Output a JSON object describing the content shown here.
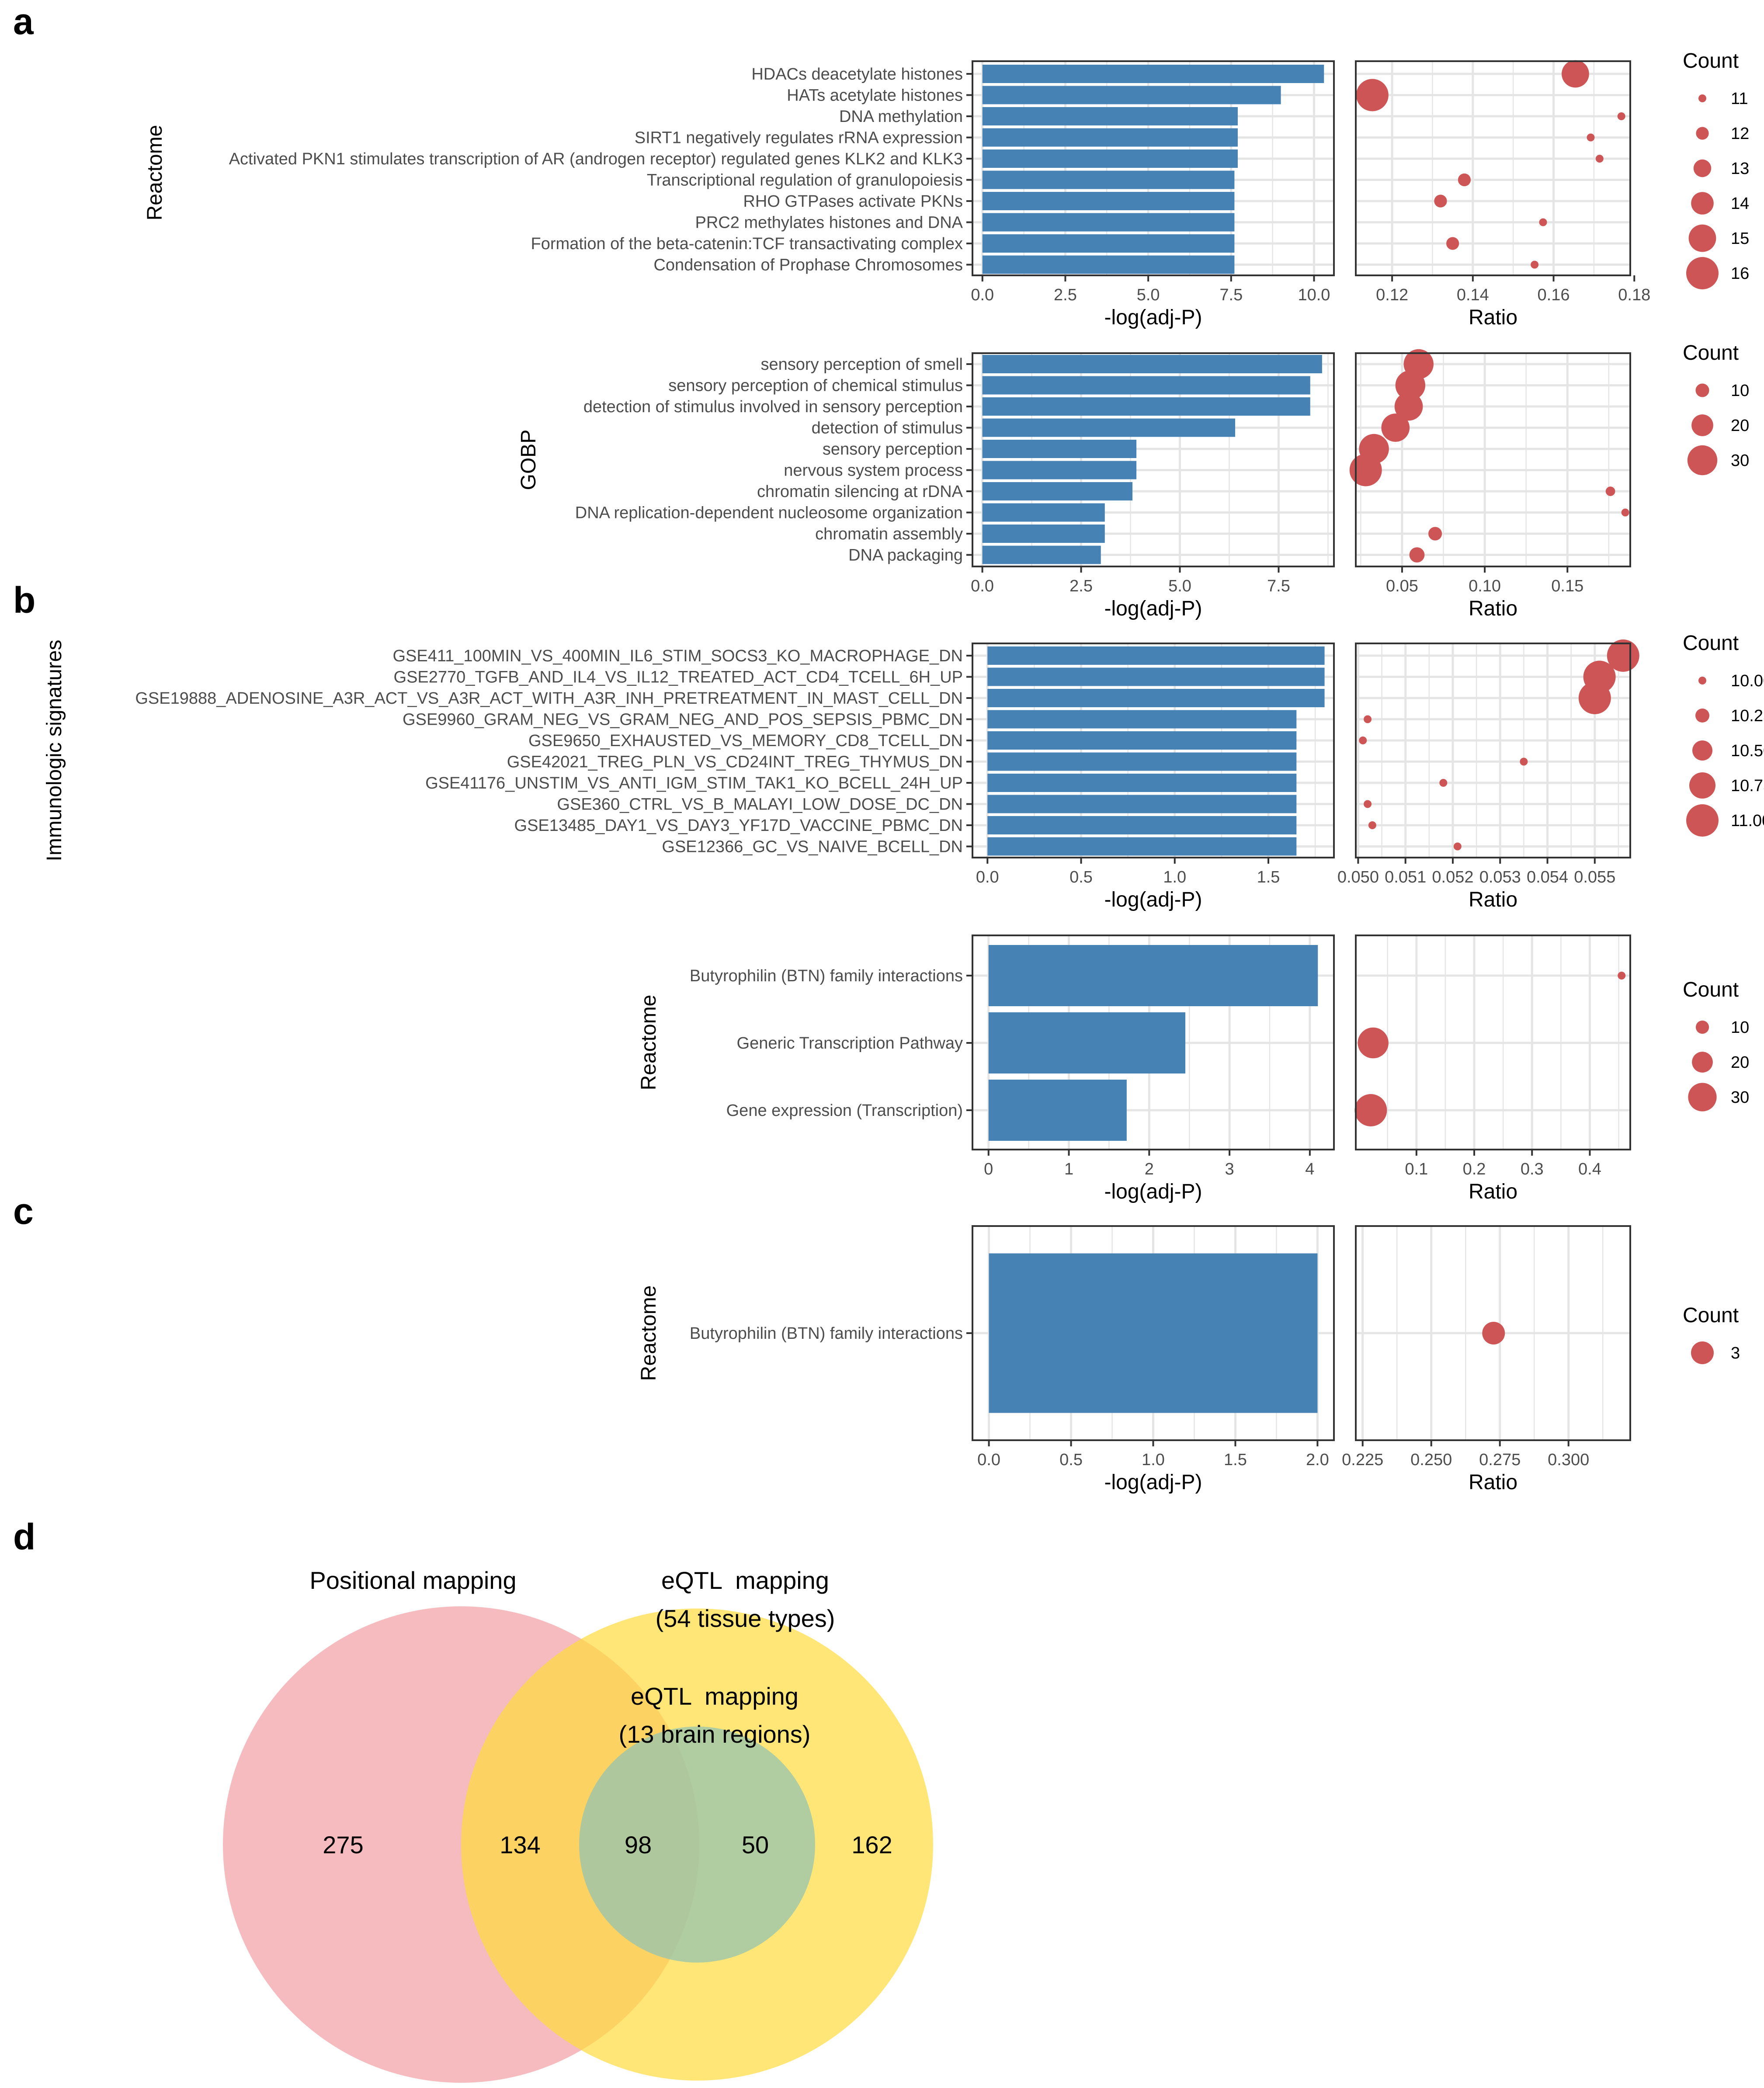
{
  "panel_letters": {
    "a": "a",
    "b": "b",
    "c": "c",
    "d": "d"
  },
  "colors": {
    "bar": "#4682b4",
    "dot": "#cd5555",
    "grid": "#e5e5e5",
    "frame": "#333333",
    "venn_positional": "#f29ea3",
    "venn_eqtl54": "#ffdc3c",
    "venn_brain": "#96c3b0"
  },
  "chart_data": [
    {
      "id": "a-reactome",
      "type": "bar",
      "group_label": "Reactome",
      "categories": [
        "HDACs deacetylate histones",
        "HATs acetylate histones",
        "DNA methylation",
        "SIRT1 negatively regulates rRNA expression",
        "Activated PKN1 stimulates transcription of AR (androgen receptor) regulated genes KLK2 and KLK3",
        "Transcriptional regulation of granulopoiesis",
        "RHO GTPases activate PKNs",
        "PRC2 methylates histones and DNA",
        "Formation of the beta-catenin:TCF transactivating complex",
        "Condensation of Prophase Chromosomes"
      ],
      "values": [
        10.3,
        9.0,
        7.7,
        7.7,
        7.7,
        7.6,
        7.6,
        7.6,
        7.6,
        7.6
      ],
      "xlabel": "-log(adj-P)",
      "xlim": [
        -0.3,
        10.6
      ],
      "xticks": [
        0,
        2.5,
        5,
        7.5,
        10
      ],
      "xtick_labels": [
        "0.0",
        "2.5",
        "5.0",
        "7.5",
        "10.0"
      ],
      "dot": {
        "type": "scatter",
        "xlabel": "Ratio",
        "xlim": [
          0.111,
          0.179
        ],
        "xticks": [
          0.12,
          0.14,
          0.16,
          0.18
        ],
        "xtick_labels": [
          "0.12",
          "0.14",
          "0.16",
          "0.18"
        ],
        "ratios": [
          0.1654,
          0.1151,
          0.1768,
          0.1692,
          0.1714,
          0.1379,
          0.132,
          0.1574,
          0.135,
          0.1553
        ],
        "counts": [
          15,
          16,
          11,
          11,
          11,
          12,
          12,
          11,
          12,
          11
        ],
        "size_range": [
          11,
          16
        ]
      },
      "legend": {
        "title": "Count",
        "values": [
          11,
          12,
          13,
          14,
          15,
          16
        ],
        "labels": [
          "11",
          "12",
          "13",
          "14",
          "15",
          "16"
        ]
      }
    },
    {
      "id": "a-gobp",
      "type": "bar",
      "group_label": "GOBP",
      "categories": [
        "sensory perception of smell",
        "sensory perception of chemical stimulus",
        "detection of stimulus involved in sensory perception",
        "detection of stimulus",
        "sensory perception",
        "nervous system process",
        "chromatin silencing at rDNA",
        "DNA replication-dependent nucleosome organization",
        "chromatin assembly",
        "DNA packaging"
      ],
      "values": [
        8.6,
        8.3,
        8.3,
        6.4,
        3.9,
        3.9,
        3.8,
        3.1,
        3.1,
        3.0
      ],
      "xlabel": "-log(adj-P)",
      "xlim": [
        -0.25,
        8.9
      ],
      "xticks": [
        0,
        2.5,
        5,
        7.5
      ],
      "xtick_labels": [
        "0.0",
        "2.5",
        "5.0",
        "7.5"
      ],
      "dot": {
        "type": "scatter",
        "xlabel": "Ratio",
        "xlim": [
          0.022,
          0.188
        ],
        "xticks": [
          0.05,
          0.1,
          0.15
        ],
        "xtick_labels": [
          "0.05",
          "0.10",
          "0.15"
        ],
        "ratios": [
          0.06,
          0.055,
          0.054,
          0.046,
          0.033,
          0.028,
          0.176,
          0.185,
          0.07,
          0.059
        ],
        "counts": [
          30,
          30,
          28,
          28,
          30,
          33,
          5,
          3,
          10,
          12
        ],
        "size_range": [
          3,
          33
        ]
      },
      "legend": {
        "title": "Count",
        "values": [
          10,
          20,
          30
        ],
        "labels": [
          "10",
          "20",
          "30"
        ]
      }
    },
    {
      "id": "b-immunologic",
      "type": "bar",
      "group_label": "Immunologic signatures",
      "categories": [
        "GSE411_100MIN_VS_400MIN_IL6_STIM_SOCS3_KO_MACROPHAGE_DN",
        "GSE2770_TGFB_AND_IL4_VS_IL12_TREATED_ACT_CD4_TCELL_6H_UP",
        "GSE19888_ADENOSINE_A3R_ACT_VS_A3R_ACT_WITH_A3R_INH_PRETREATMENT_IN_MAST_CELL_DN",
        "GSE9960_GRAM_NEG_VS_GRAM_NEG_AND_POS_SEPSIS_PBMC_DN",
        "GSE9650_EXHAUSTED_VS_MEMORY_CD8_TCELL_DN",
        "GSE42021_TREG_PLN_VS_CD24INT_TREG_THYMUS_DN",
        "GSE41176_UNSTIM_VS_ANTI_IGM_STIM_TAK1_KO_BCELL_24H_UP",
        "GSE360_CTRL_VS_B_MALAYI_LOW_DOSE_DC_DN",
        "GSE13485_DAY1_VS_DAY3_YF17D_VACCINE_PBMC_DN",
        "GSE12366_GC_VS_NAIVE_BCELL_DN"
      ],
      "values": [
        1.8,
        1.8,
        1.8,
        1.65,
        1.65,
        1.65,
        1.65,
        1.65,
        1.65,
        1.65
      ],
      "xlabel": "-log(adj-P)",
      "xlim": [
        -0.08,
        1.85
      ],
      "xticks": [
        0,
        0.5,
        1,
        1.5
      ],
      "xtick_labels": [
        "0.0",
        "0.5",
        "1.0",
        "1.5"
      ],
      "dot": {
        "type": "scatter",
        "xlabel": "Ratio",
        "xlim": [
          0.04995,
          0.05575
        ],
        "xticks": [
          0.05,
          0.051,
          0.052,
          0.053,
          0.054,
          0.055
        ],
        "xtick_labels": [
          "0.050",
          "0.051",
          "0.052",
          "0.053",
          "0.054",
          "0.055"
        ],
        "ratios": [
          0.0556,
          0.0551,
          0.055,
          0.0502,
          0.0501,
          0.0535,
          0.0518,
          0.0502,
          0.0503,
          0.0521
        ],
        "counts": [
          11,
          11,
          11,
          10,
          10,
          10,
          10,
          10,
          10,
          10
        ],
        "size_range": [
          10,
          11
        ]
      },
      "legend": {
        "title": "Count",
        "values": [
          10,
          10.25,
          10.5,
          10.75,
          11
        ],
        "labels": [
          "10.00",
          "10.25",
          "10.50",
          "10.75",
          "11.00"
        ]
      }
    },
    {
      "id": "b-reactome",
      "type": "bar",
      "group_label": "Reactome",
      "categories": [
        "Butyrophilin (BTN) family interactions",
        "Generic Transcription Pathway",
        "Gene expression (Transcription)"
      ],
      "values": [
        4.1,
        2.45,
        1.72
      ],
      "xlabel": "-log(adj-P)",
      "xlim": [
        -0.2,
        4.3
      ],
      "xticks": [
        0,
        1,
        2,
        3,
        4
      ],
      "xtick_labels": [
        "0",
        "1",
        "2",
        "3",
        "4"
      ],
      "dot": {
        "type": "scatter",
        "xlabel": "Ratio",
        "xlim": [
          -0.005,
          0.47
        ],
        "xticks": [
          0.1,
          0.2,
          0.3,
          0.4
        ],
        "xtick_labels": [
          "0.1",
          "0.2",
          "0.3",
          "0.4"
        ],
        "ratios": [
          0.455,
          0.025,
          0.021
        ],
        "counts": [
          3,
          33,
          35
        ],
        "size_range": [
          3,
          35
        ]
      },
      "legend": {
        "title": "Count",
        "values": [
          10,
          20,
          30
        ],
        "labels": [
          "10",
          "20",
          "30"
        ]
      }
    },
    {
      "id": "c-reactome",
      "type": "bar",
      "group_label": "Reactome",
      "categories": [
        "Butyrophilin (BTN) family interactions"
      ],
      "values": [
        2.0
      ],
      "xlabel": "-log(adj-P)",
      "xlim": [
        -0.1,
        2.1
      ],
      "xticks": [
        0,
        0.5,
        1,
        1.5,
        2
      ],
      "xtick_labels": [
        "0.0",
        "0.5",
        "1.0",
        "1.5",
        "2.0"
      ],
      "dot": {
        "type": "scatter",
        "xlabel": "Ratio",
        "xlim": [
          0.2225,
          0.3225
        ],
        "xticks": [
          0.225,
          0.25,
          0.275,
          0.3
        ],
        "xtick_labels": [
          "0.225",
          "0.250",
          "0.275",
          "0.300"
        ],
        "ratios": [
          0.2727
        ],
        "counts": [
          3
        ],
        "size_range": [
          3,
          3
        ]
      },
      "legend": {
        "title": "Count",
        "values": [
          3
        ],
        "labels": [
          "3"
        ]
      }
    }
  ],
  "venn": {
    "sets": [
      {
        "name": "Positional mapping",
        "title_lines": [
          "Positional mapping"
        ]
      },
      {
        "name": "eQTL mapping (54 tissue types)",
        "title_lines": [
          "eQTL  mapping",
          "(54 tissue types)"
        ]
      },
      {
        "name": "eQTL mapping (13 brain regions)",
        "title_lines": [
          "eQTL  mapping",
          "(13 brain regions)"
        ]
      }
    ],
    "regions": {
      "positional_only": "275",
      "positional_and_eqtl54": "134",
      "all_three": "98",
      "eqtl54_and_brain": "50",
      "eqtl54_only": "162"
    }
  }
}
